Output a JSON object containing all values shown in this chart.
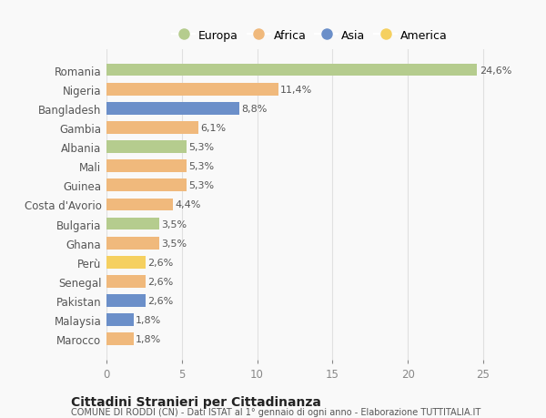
{
  "countries": [
    "Romania",
    "Nigeria",
    "Bangladesh",
    "Gambia",
    "Albania",
    "Mali",
    "Guinea",
    "Costa d'Avorio",
    "Bulgaria",
    "Ghana",
    "Perù",
    "Senegal",
    "Pakistan",
    "Malaysia",
    "Marocco"
  ],
  "values": [
    24.6,
    11.4,
    8.8,
    6.1,
    5.3,
    5.3,
    5.3,
    4.4,
    3.5,
    3.5,
    2.6,
    2.6,
    2.6,
    1.8,
    1.8
  ],
  "labels": [
    "24,6%",
    "11,4%",
    "8,8%",
    "6,1%",
    "5,3%",
    "5,3%",
    "5,3%",
    "4,4%",
    "3,5%",
    "3,5%",
    "2,6%",
    "2,6%",
    "2,6%",
    "1,8%",
    "1,8%"
  ],
  "continents": [
    "Europa",
    "Africa",
    "Asia",
    "Africa",
    "Europa",
    "Africa",
    "Africa",
    "Africa",
    "Europa",
    "Africa",
    "America",
    "Africa",
    "Asia",
    "Asia",
    "Africa"
  ],
  "continent_colors": {
    "Europa": "#b5cc8e",
    "Africa": "#f0b97c",
    "Asia": "#6b8fc9",
    "America": "#f5d060"
  },
  "legend_order": [
    "Europa",
    "Africa",
    "Asia",
    "America"
  ],
  "xlim": [
    0,
    27
  ],
  "xticks": [
    0,
    5,
    10,
    15,
    20,
    25
  ],
  "title": "Cittadini Stranieri per Cittadinanza",
  "subtitle": "COMUNE DI RODDI (CN) - Dati ISTAT al 1° gennaio di ogni anno - Elaborazione TUTTITALIA.IT",
  "background_color": "#f9f9f9",
  "grid_color": "#e0e0e0",
  "bar_height": 0.65,
  "label_fontsize": 8,
  "ytick_fontsize": 8.5,
  "xtick_fontsize": 8.5,
  "legend_fontsize": 9,
  "title_fontsize": 10,
  "subtitle_fontsize": 7
}
